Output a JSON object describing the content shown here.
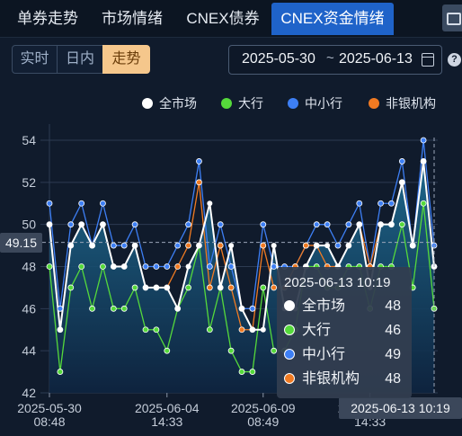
{
  "tabs": [
    {
      "label": "单券走势",
      "active": false
    },
    {
      "label": "市场情绪",
      "active": false
    },
    {
      "label": "CNEX债券",
      "active": false
    },
    {
      "label": "CNEX资金情绪",
      "active": true
    }
  ],
  "mode_buttons": [
    {
      "label": "实时",
      "active": false
    },
    {
      "label": "日内",
      "active": false
    },
    {
      "label": "走势",
      "active": true
    }
  ],
  "date_range": {
    "start": "2025-05-30",
    "separator": "~",
    "end": "2025-06-13"
  },
  "help_icon": "?",
  "colors": {
    "all_market": "#ffffff",
    "big_banks": "#55d93b",
    "small_mid_banks": "#3d7ff5",
    "non_bank": "#f07a22",
    "area_top": "#1f6f95",
    "area_bottom": "#0e2440"
  },
  "crosshair": {
    "y_value": "49.15",
    "x_value": "2025-06-13 10:19"
  },
  "tooltip": {
    "title": "2025-06-13 10:19",
    "rows": [
      {
        "name": "全市场",
        "value": "48",
        "color": "#ffffff"
      },
      {
        "name": "大行",
        "value": "46",
        "color": "#55d93b"
      },
      {
        "name": "中小行",
        "value": "49",
        "color": "#3d7ff5"
      },
      {
        "name": "非银机构",
        "value": "48",
        "color": "#f07a22"
      }
    ]
  },
  "chart_data": {
    "type": "line",
    "ylim": [
      42,
      55
    ],
    "y_ticks": [
      42,
      44,
      46,
      48,
      50,
      52,
      54
    ],
    "x_ticks": [
      {
        "line1": "2025-05-30",
        "line2": "08:48",
        "index": 0
      },
      {
        "line1": "2025-06-04",
        "line2": "14:33",
        "index": 11
      },
      {
        "line1": "2025-06-09",
        "line2": "08:49",
        "index": 20
      },
      {
        "line1": "2025-06-13",
        "line2": "14:33",
        "index": 30
      }
    ],
    "series": [
      {
        "name": "全市场",
        "color": "#ffffff",
        "values": [
          50,
          45,
          49,
          50,
          49,
          50,
          48,
          48,
          49,
          47,
          47,
          47,
          46,
          48,
          49,
          51,
          47,
          49,
          46,
          45,
          45,
          49,
          46,
          46,
          48,
          49,
          49,
          48,
          49,
          50,
          47,
          50,
          50,
          52,
          49,
          53,
          48
        ]
      },
      {
        "name": "大行",
        "color": "#55d93b",
        "values": [
          48,
          43,
          47,
          48,
          46,
          48,
          46,
          46,
          47,
          45,
          45,
          44,
          46,
          47,
          49,
          45,
          47,
          44,
          43,
          43,
          47,
          44,
          44,
          45,
          48,
          48,
          47,
          47,
          48,
          48,
          46,
          48,
          48,
          50,
          47,
          51,
          46
        ]
      },
      {
        "name": "中小行",
        "color": "#3d7ff5",
        "values": [
          51,
          46,
          50,
          51,
          49,
          51,
          49,
          49,
          50,
          48,
          48,
          48,
          49,
          50,
          53,
          48,
          50,
          48,
          46,
          46,
          50,
          48,
          48,
          48,
          49,
          50,
          50,
          49,
          50,
          51,
          48,
          51,
          51,
          53,
          49,
          54,
          49
        ]
      },
      {
        "name": "非银机构",
        "color": "#f07a22",
        "values": [
          50,
          45,
          49,
          50,
          49,
          50,
          48,
          48,
          49,
          47,
          47,
          47,
          48,
          49,
          52,
          47,
          49,
          47,
          45,
          45,
          49,
          47,
          47,
          48,
          49,
          49,
          48,
          48,
          49,
          50,
          48,
          50,
          50,
          52,
          49,
          53,
          48
        ]
      }
    ]
  }
}
